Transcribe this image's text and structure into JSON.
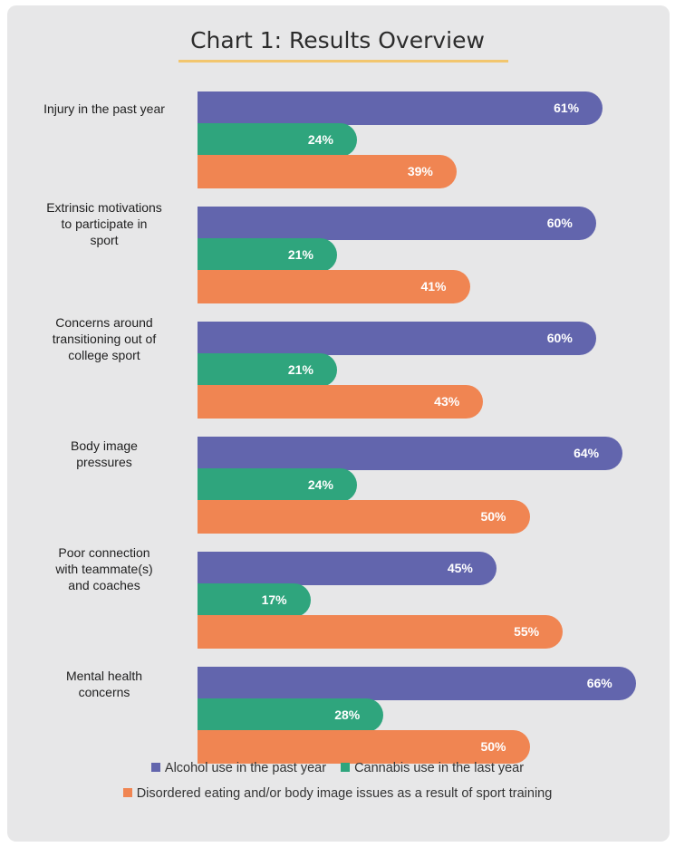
{
  "chart_data": {
    "type": "bar",
    "orientation": "horizontal",
    "title": "Chart 1: Results Overview",
    "categories": [
      "Injury in the past year",
      "Extrinsic motivations\nto participate in\nsport",
      "Concerns around\ntransitioning out of\ncollege sport",
      "Body image\npressures",
      "Poor connection\nwith teammate(s)\nand coaches",
      "Mental health\nconcerns"
    ],
    "series": [
      {
        "name": "Alcohol use in the past year",
        "color": "#6265ad",
        "values": [
          61,
          60,
          60,
          64,
          45,
          66
        ]
      },
      {
        "name": "Cannabis use in the last year",
        "color": "#2fa57d",
        "values": [
          24,
          21,
          21,
          24,
          17,
          28
        ]
      },
      {
        "name": "Disordered eating and/or body image issues as a result of sport training",
        "color": "#f08552",
        "values": [
          39,
          41,
          43,
          50,
          55,
          50
        ]
      }
    ],
    "value_suffix": "%",
    "xlim": [
      0,
      70
    ],
    "grid": false,
    "legend_position": "bottom"
  }
}
